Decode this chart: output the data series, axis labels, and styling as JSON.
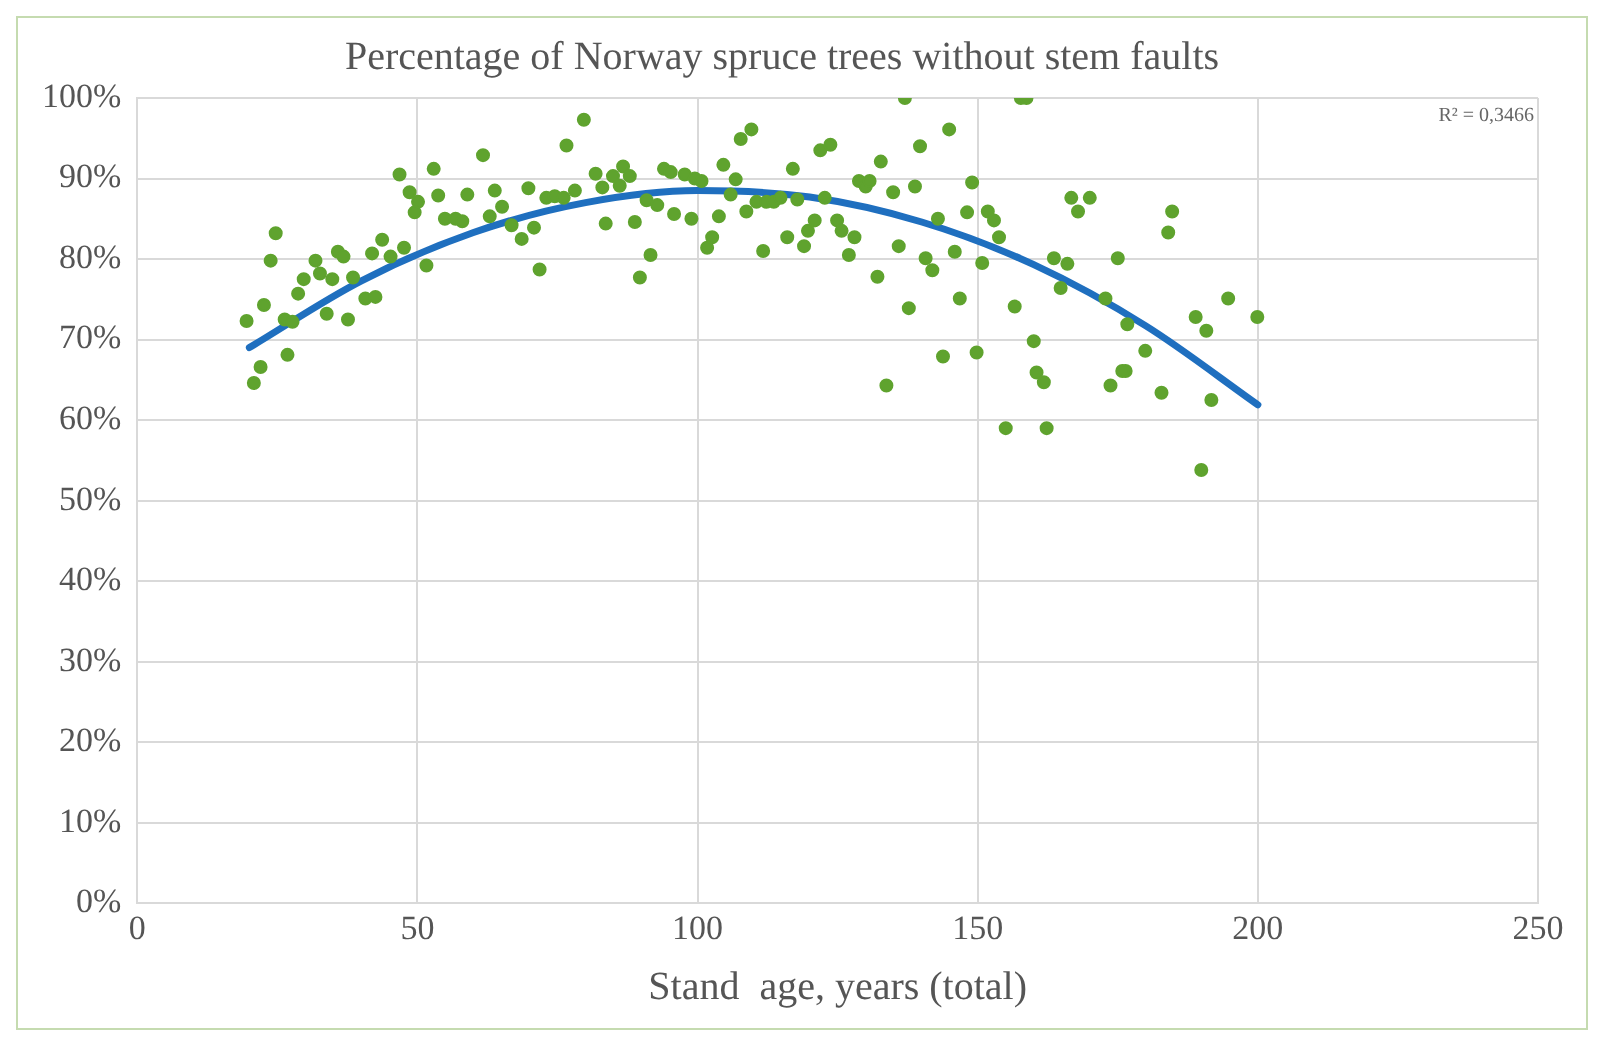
{
  "chart_data": {
    "type": "scatter",
    "title": "Percentage of Norway spruce trees without stem faults",
    "xlabel": "Stand  age, years (total)",
    "annotations": [
      "R² = 0,3466"
    ],
    "xlim": [
      0,
      250
    ],
    "xticks": [
      0,
      50,
      100,
      150,
      200,
      250
    ],
    "ylim": [
      0,
      100
    ],
    "yticks": [
      {
        "value": 0,
        "label": "0%"
      },
      {
        "value": 10,
        "label": "10%"
      },
      {
        "value": 20,
        "label": "20%"
      },
      {
        "value": 30,
        "label": "30%"
      },
      {
        "value": 40,
        "label": "40%"
      },
      {
        "value": 50,
        "label": "50%"
      },
      {
        "value": 60,
        "label": "60%"
      },
      {
        "value": 70,
        "label": "70%"
      },
      {
        "value": 80,
        "label": "80%"
      },
      {
        "value": 90,
        "label": "90%"
      },
      {
        "value": 100,
        "label": "100%"
      }
    ],
    "grid": true,
    "legend": false,
    "marker": "circle",
    "series": [
      {
        "type": "scatter",
        "color": "#5fa32e",
        "x": [
          19.5,
          20.8,
          22,
          22.6,
          23.8,
          24.7,
          26.8,
          26.3,
          27.7,
          28.7,
          29.7,
          31.8,
          32.6,
          33.8,
          34.8,
          35.8,
          36.8,
          37.6,
          38.5,
          40.7,
          42.5,
          41.9,
          43.7,
          45.2,
          47.6,
          46.8,
          48.6,
          50.1,
          49.5,
          51.6,
          52.9,
          53.7,
          54.9,
          56.8,
          58,
          58.9,
          61.7,
          62.9,
          63.8,
          65.1,
          66.8,
          68.6,
          69.8,
          70.8,
          71.8,
          73,
          74.5,
          76.1,
          76.6,
          78.1,
          79.7,
          81.8,
          83,
          83.6,
          84.9,
          86.1,
          86.7,
          87.9,
          88.8,
          89.7,
          91.6,
          90.9,
          92.8,
          94,
          95.8,
          95.2,
          97.7,
          98.9,
          99.5,
          100.7,
          101.7,
          102.6,
          103.8,
          104.6,
          105.9,
          106.8,
          107.7,
          109.6,
          108.7,
          110.5,
          111.7,
          112.3,
          113.6,
          114.8,
          116,
          117,
          117.8,
          119,
          119.7,
          120.9,
          121.9,
          123.7,
          122.7,
          124.9,
          125.7,
          127,
          128,
          128.8,
          130,
          130.7,
          132.1,
          132.7,
          134.9,
          133.7,
          135.9,
          137,
          137.7,
          138.8,
          139.7,
          140.7,
          141.9,
          142.9,
          143.8,
          144.9,
          145.9,
          146.8,
          148.1,
          149,
          149.8,
          150.8,
          151.8,
          152.9,
          153.8,
          156.6,
          157.7,
          158.7,
          160,
          160.5,
          161.8,
          163.6,
          164.8,
          166,
          166.7,
          167.9,
          170,
          175,
          176.4,
          155,
          162.3,
          184.7,
          184,
          172.8,
          176.7,
          179.9,
          175.8,
          173.7,
          182.8,
          188.9,
          190.8,
          194.7,
          199.9,
          191.7,
          189.9
        ],
        "values": [
          72.3,
          64.6,
          66.6,
          74.3,
          79.8,
          83.2,
          68.1,
          72.5,
          72.2,
          75.7,
          77.5,
          79.8,
          78.2,
          73.2,
          77.5,
          80.9,
          80.3,
          72.5,
          77.7,
          75.1,
          75.3,
          80.7,
          82.4,
          80.3,
          81.4,
          90.5,
          88.3,
          87.1,
          85.8,
          79.2,
          91.2,
          87.9,
          85,
          85,
          84.7,
          88,
          92.9,
          85.3,
          88.5,
          86.5,
          84.2,
          82.5,
          88.8,
          83.9,
          78.7,
          87.6,
          87.8,
          87.6,
          94.1,
          88.5,
          97.3,
          90.6,
          88.9,
          84.4,
          90.3,
          89.1,
          91.5,
          90.3,
          84.6,
          77.7,
          80.5,
          87.3,
          86.7,
          91.2,
          85.6,
          90.8,
          90.5,
          85,
          90,
          89.7,
          81.4,
          82.7,
          85.3,
          91.7,
          88,
          89.9,
          94.9,
          96.1,
          85.9,
          87.1,
          81,
          87.1,
          87.1,
          87.6,
          82.7,
          91.2,
          87.4,
          81.6,
          83.5,
          84.8,
          93.5,
          94.2,
          87.6,
          84.8,
          83.5,
          80.5,
          82.7,
          89.7,
          89,
          89.7,
          77.8,
          92.1,
          88.3,
          64.3,
          81.6,
          100,
          73.9,
          89,
          94,
          80.1,
          78.6,
          85,
          67.9,
          96.1,
          80.9,
          75.1,
          85.8,
          89.5,
          68.4,
          79.5,
          85.9,
          84.8,
          82.7,
          74.1,
          100,
          100,
          69.8,
          65.9,
          64.7,
          80.1,
          76.4,
          79.4,
          87.6,
          85.9,
          87.6,
          80.1,
          66.1,
          59,
          59,
          85.9,
          83.3,
          75.1,
          71.9,
          68.6,
          66.1,
          64.3,
          63.4,
          72.8,
          71.1,
          75.1,
          72.8,
          62.5,
          53.8
        ]
      },
      {
        "type": "line",
        "color": "#1f6fbf",
        "marker": "none",
        "line_style": "solid",
        "x": [
          20,
          40,
          60,
          80,
          100,
          120,
          140,
          160,
          180,
          200
        ],
        "values": [
          69,
          77.3,
          83.3,
          87,
          88.5,
          87.7,
          84.6,
          79.3,
          71.7,
          61.9
        ]
      }
    ]
  }
}
